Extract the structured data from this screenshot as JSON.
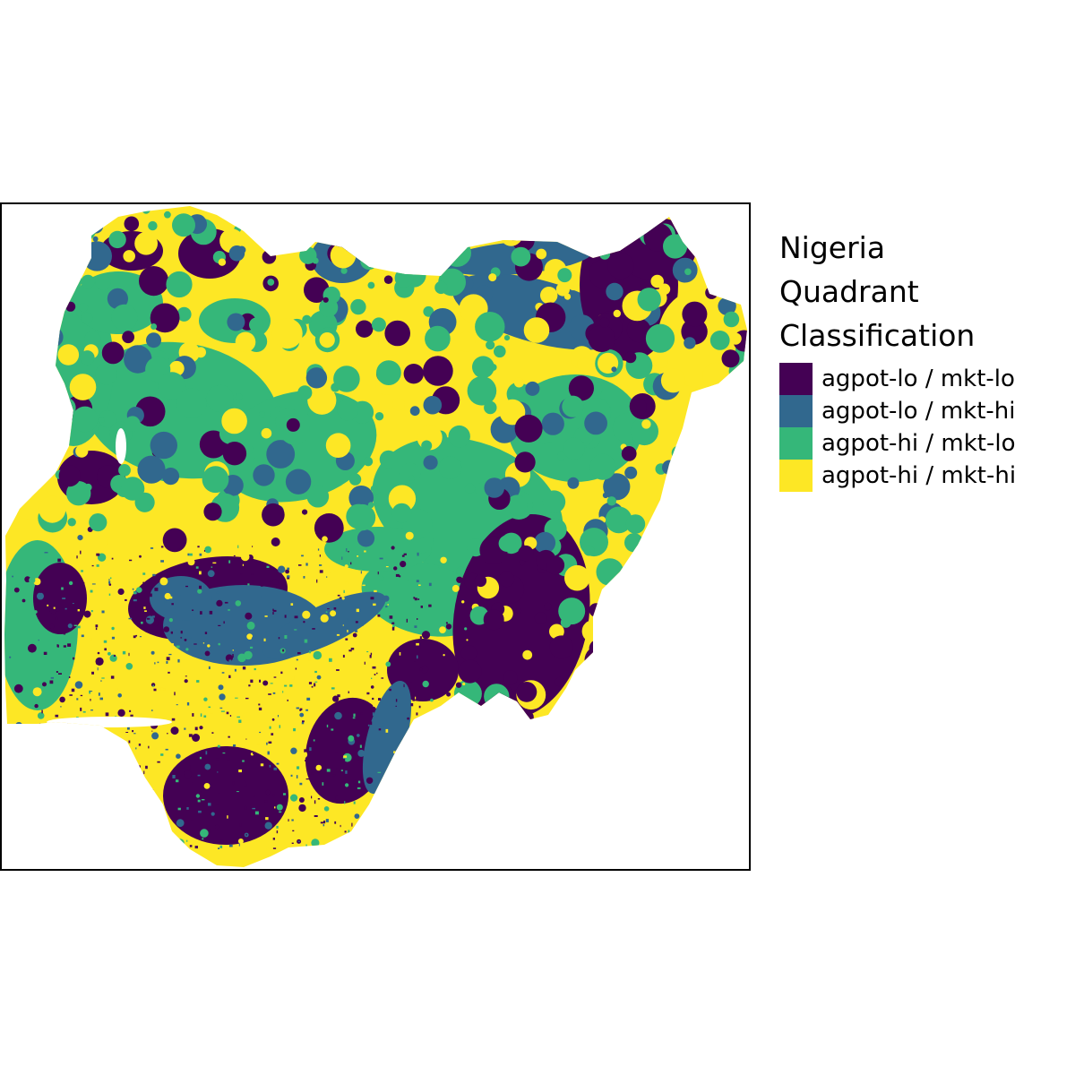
{
  "legend": {
    "title_lines": [
      "Nigeria",
      "Quadrant",
      "Classification"
    ],
    "items": [
      {
        "label": "agpot-lo / mkt-lo",
        "color": "#440154"
      },
      {
        "label": "agpot-lo / mkt-hi",
        "color": "#31688e"
      },
      {
        "label": "agpot-hi / mkt-lo",
        "color": "#35b779"
      },
      {
        "label": "agpot-hi / mkt-hi",
        "color": "#fde725"
      }
    ]
  },
  "colors": {
    "background": "#ffffff",
    "frame": "#000000"
  }
}
